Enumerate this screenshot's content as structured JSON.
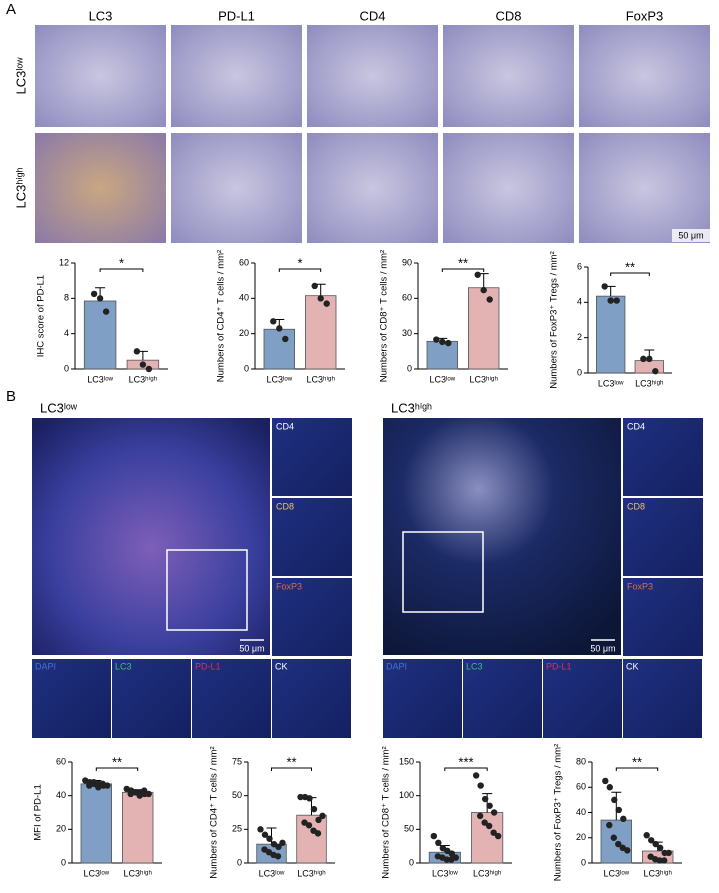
{
  "panel_a": {
    "label": "A",
    "columns": [
      "LC3",
      "PD-L1",
      "CD4",
      "CD8",
      "FoxP3"
    ],
    "rows": [
      "LC3ˡᵒʷ",
      "LC3ʰⁱᵍʰ"
    ],
    "scale_bar": "50 μm"
  },
  "panel_b": {
    "label": "B",
    "groups": [
      {
        "title": "LC3ˡᵒʷ",
        "side_channels": [
          "CD4",
          "CD8",
          "FoxP3"
        ],
        "bottom_channels": [
          "DAPI",
          "LC3",
          "PD-L1",
          "CK"
        ],
        "scale_bar": "50 μm"
      },
      {
        "title": "LC3ʰⁱᵍʰ",
        "side_channels": [
          "CD4",
          "CD8",
          "FoxP3"
        ],
        "bottom_channels": [
          "DAPI",
          "LC3",
          "PD-L1",
          "CK"
        ],
        "scale_bar": "50 μm"
      }
    ]
  },
  "chart_data": [
    {
      "type": "bar",
      "ylabel": "IHC score of PD-L1",
      "categories": [
        "LC3ˡᵒʷ",
        "LC3ʰⁱᵍʰ"
      ],
      "values": [
        7.7,
        1.0
      ],
      "errors": [
        1.5,
        1.0
      ],
      "colors": [
        "#7f9fc4",
        "#e3b3b3"
      ],
      "points": [
        [
          8.5,
          8.0,
          6.5
        ],
        [
          2.0,
          0.5,
          0.0
        ]
      ],
      "significance": "*",
      "ylim": [
        0,
        12
      ],
      "yticks": [
        0,
        4,
        8,
        12
      ]
    },
    {
      "type": "bar",
      "ylabel": "Numbers of CD4⁺ T cells / mm²",
      "categories": [
        "LC3ˡᵒʷ",
        "LC3ʰⁱᵍʰ"
      ],
      "values": [
        22.5,
        41.5
      ],
      "errors": [
        5.5,
        6.5
      ],
      "colors": [
        "#7f9fc4",
        "#e3b3b3"
      ],
      "points": [
        [
          27,
          23,
          17
        ],
        [
          47,
          40,
          37
        ]
      ],
      "significance": "*",
      "ylim": [
        0,
        60
      ],
      "yticks": [
        0,
        20,
        40,
        60
      ]
    },
    {
      "type": "bar",
      "ylabel": "Numbers of CD8⁺ T cells / mm²",
      "categories": [
        "LC3ˡᵒʷ",
        "LC3ʰⁱᵍʰ"
      ],
      "values": [
        23.5,
        69
      ],
      "errors": [
        2.5,
        12
      ],
      "colors": [
        "#7f9fc4",
        "#e3b3b3"
      ],
      "points": [
        [
          25,
          23,
          22
        ],
        [
          80,
          67,
          59
        ]
      ],
      "significance": "**",
      "ylim": [
        0,
        90
      ],
      "yticks": [
        0,
        30,
        60,
        90
      ]
    },
    {
      "type": "bar",
      "ylabel": "Numbers of FoxP3⁺ Tregs / mm²",
      "categories": [
        "LC3ˡᵒʷ",
        "LC3ʰⁱᵍʰ"
      ],
      "values": [
        4.35,
        0.7
      ],
      "errors": [
        0.55,
        0.6
      ],
      "colors": [
        "#7f9fc4",
        "#e3b3b3"
      ],
      "points": [
        [
          4.9,
          4.1,
          4.1
        ],
        [
          0.8,
          0.8,
          0.1
        ]
      ],
      "significance": "**",
      "ylim": [
        0,
        6
      ],
      "yticks": [
        0,
        2,
        4,
        6
      ]
    },
    {
      "type": "bar",
      "ylabel": "MFI of PD-L1",
      "categories": [
        "LC3ˡᵒʷ",
        "LC3ʰⁱᵍʰ"
      ],
      "values": [
        47,
        42
      ],
      "errors": [
        2,
        1.5
      ],
      "colors": [
        "#7f9fc4",
        "#e3b3b3"
      ],
      "points": [
        [
          49,
          48,
          47,
          47,
          46,
          46,
          48,
          45,
          47,
          46
        ],
        [
          44,
          43,
          42,
          42,
          41,
          41,
          42,
          40,
          43,
          41
        ]
      ],
      "significance": "**",
      "ylim": [
        0,
        60
      ],
      "yticks": [
        0,
        20,
        40,
        60
      ]
    },
    {
      "type": "bar",
      "ylabel": "Numbers of CD4⁺ T cells / mm²",
      "categories": [
        "LC3ˡᵒʷ",
        "LC3ʰⁱᵍʰ"
      ],
      "values": [
        14,
        35.5
      ],
      "errors": [
        12,
        13
      ],
      "colors": [
        "#7f9fc4",
        "#e3b3b3"
      ],
      "points": [
        [
          25,
          21,
          18,
          14,
          12,
          10,
          8,
          6,
          5,
          15
        ],
        [
          49,
          49,
          48,
          40,
          32,
          30,
          28,
          24,
          22,
          35
        ]
      ],
      "significance": "**",
      "ylim": [
        0,
        75
      ],
      "yticks": [
        0,
        25,
        50,
        75
      ]
    },
    {
      "type": "bar",
      "ylabel": "Numbers of CD8⁺ T cells / mm²",
      "categories": [
        "LC3ˡᵒʷ",
        "LC3ʰⁱᵍʰ"
      ],
      "values": [
        16,
        75
      ],
      "errors": [
        10,
        28
      ],
      "colors": [
        "#7f9fc4",
        "#e3b3b3"
      ],
      "points": [
        [
          40,
          30,
          22,
          18,
          14,
          10,
          8,
          5,
          5,
          8
        ],
        [
          130,
          115,
          95,
          85,
          75,
          70,
          60,
          55,
          45,
          40
        ]
      ],
      "significance": "***",
      "ylim": [
        0,
        150
      ],
      "yticks": [
        0,
        50,
        100,
        150
      ]
    },
    {
      "type": "bar",
      "ylabel": "Numbers of FoxP3⁺ Tregs / mm²",
      "categories": [
        "LC3ˡᵒʷ",
        "LC3ʰⁱᵍʰ"
      ],
      "values": [
        34,
        9.5
      ],
      "errors": [
        22,
        7
      ],
      "colors": [
        "#7f9fc4",
        "#e3b3b3"
      ],
      "points": [
        [
          65,
          60,
          50,
          42,
          35,
          30,
          20,
          15,
          12,
          10
        ],
        [
          22,
          18,
          15,
          12,
          8,
          5,
          3,
          2,
          2,
          8
        ]
      ],
      "significance": "**",
      "ylim": [
        0,
        80
      ],
      "yticks": [
        0,
        20,
        40,
        60,
        80
      ]
    }
  ]
}
